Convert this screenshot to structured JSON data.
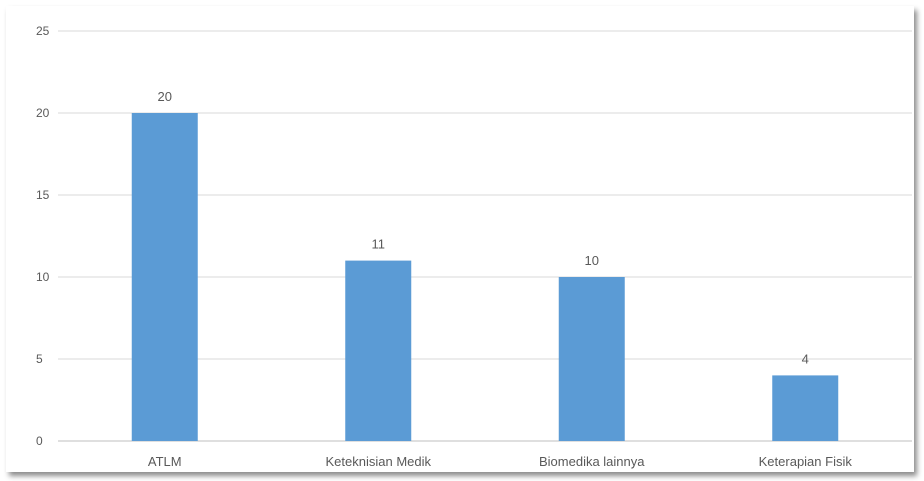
{
  "chart_data": {
    "type": "bar",
    "categories": [
      "ATLM",
      "Keteknisian Medik",
      "Biomedika lainnya",
      "Keterapian Fisik"
    ],
    "values": [
      20,
      11,
      10,
      4
    ],
    "data_labels": [
      "20",
      "11",
      "10",
      "4"
    ],
    "title": "",
    "xlabel": "",
    "ylabel": "",
    "ylim": [
      0,
      25
    ],
    "yticks": [
      0,
      5,
      10,
      15,
      20,
      25
    ],
    "ytick_labels": [
      "0",
      "5",
      "10",
      "15",
      "20",
      "25"
    ],
    "grid": true,
    "legend": "none",
    "colors": {
      "bar": "#5B9BD5",
      "grid": "#D9D9D9",
      "axis": "#BFBFBF",
      "text": "#595959"
    }
  }
}
